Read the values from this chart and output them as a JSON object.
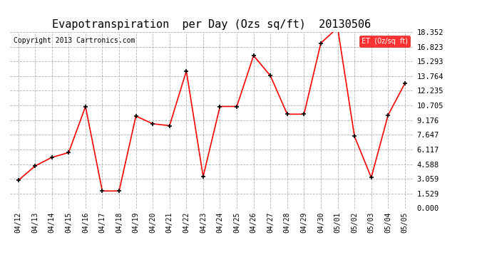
{
  "title": "Evapotranspiration  per Day (Ozs sq/ft)  20130506",
  "copyright": "Copyright 2013 Cartronics.com",
  "legend_label": "ET  (0z/sq  ft)",
  "x_labels": [
    "04/12",
    "04/13",
    "04/14",
    "04/15",
    "04/16",
    "04/17",
    "04/18",
    "04/19",
    "04/20",
    "04/21",
    "04/22",
    "04/23",
    "04/24",
    "04/25",
    "04/26",
    "04/27",
    "04/28",
    "04/29",
    "04/30",
    "05/01",
    "05/02",
    "05/03",
    "05/04",
    "05/05"
  ],
  "y_values": [
    2.9,
    4.4,
    5.3,
    5.8,
    10.6,
    1.8,
    1.8,
    9.6,
    8.8,
    8.6,
    14.3,
    3.3,
    10.6,
    10.6,
    15.9,
    13.8,
    9.8,
    9.8,
    17.2,
    18.8,
    7.5,
    3.2,
    9.7,
    13.0
  ],
  "line_color": "#ff0000",
  "marker_color": "#000000",
  "background_color": "#ffffff",
  "grid_color": "#aaaaaa",
  "y_ticks": [
    0.0,
    1.529,
    3.059,
    4.588,
    6.117,
    7.647,
    9.176,
    10.705,
    12.235,
    13.764,
    15.293,
    16.823,
    18.352
  ],
  "ylim": [
    0.0,
    18.352
  ],
  "title_fontsize": 11,
  "copyright_fontsize": 7,
  "legend_bg": "#ff0000",
  "legend_text_color": "#ffffff"
}
